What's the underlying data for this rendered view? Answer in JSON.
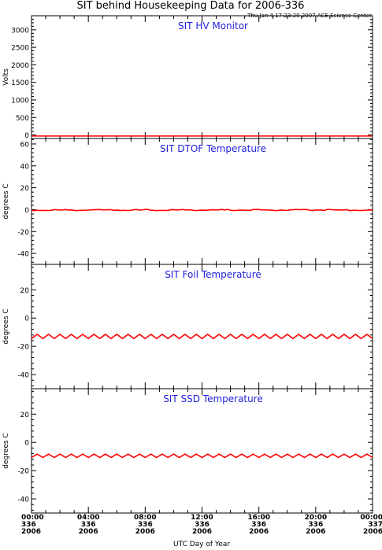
{
  "figure": {
    "title": "SIT behind Housekeeping Data for 2006-336",
    "timestamp": "Thu Jan  4 17:23:20 2007 ACE Science Center",
    "xlabel": "UTC Day of Year",
    "xticks": [
      {
        "time": "00:00",
        "doy": "336",
        "year": "2006"
      },
      {
        "time": "04:00",
        "doy": "336",
        "year": "2006"
      },
      {
        "time": "08:00",
        "doy": "336",
        "year": "2006"
      },
      {
        "time": "12:00",
        "doy": "336",
        "year": "2006"
      },
      {
        "time": "16:00",
        "doy": "336",
        "year": "2006"
      },
      {
        "time": "20:00",
        "doy": "336",
        "year": "2006"
      },
      {
        "time": "00:00",
        "doy": "337",
        "year": "2006"
      }
    ],
    "colors": {
      "series": "#ff0000",
      "panel_title": "#1f1fdd",
      "axes": "#000000"
    }
  },
  "chart_data": [
    {
      "type": "line",
      "title": "SIT HV Monitor",
      "ylabel": "Volts",
      "ylim": [
        -100,
        3400
      ],
      "yticks": [
        0,
        500,
        1000,
        1500,
        2000,
        2500,
        3000
      ],
      "xlim": [
        0,
        24
      ],
      "x_unit": "hours of UTC day 336",
      "series": [
        {
          "description": "constant",
          "points": [
            [
              0,
              -30
            ],
            [
              24,
              -30
            ]
          ]
        }
      ]
    },
    {
      "type": "line",
      "title": "SIT DTOF Temperature",
      "ylabel": "degrees C",
      "ylim": [
        -50,
        65
      ],
      "yticks": [
        -40,
        -20,
        0,
        20,
        40,
        60
      ],
      "xlim": [
        0,
        24
      ],
      "x_unit": "hours of UTC day 336",
      "series": [
        {
          "description": "flat with small noise",
          "points": [
            [
              0,
              -0.5
            ],
            [
              4,
              -0.3
            ],
            [
              8,
              -0.4
            ],
            [
              12,
              -0.3
            ],
            [
              16,
              -0.4
            ],
            [
              20,
              -0.3
            ],
            [
              24,
              -0.4
            ]
          ]
        }
      ]
    },
    {
      "type": "line",
      "title": "SIT Foil Temperature",
      "ylabel": "degrees C",
      "ylim": [
        -50,
        38
      ],
      "yticks": [
        -40,
        -20,
        0,
        20
      ],
      "xlim": [
        0,
        24
      ],
      "x_unit": "hours of UTC day 336",
      "series": [
        {
          "description": "periodic oscillation",
          "mean": -13,
          "amplitude": 1.5,
          "cycles": 30
        }
      ]
    },
    {
      "type": "line",
      "title": "SIT SSD Temperature",
      "ylabel": "degrees C",
      "ylim": [
        -50,
        38
      ],
      "yticks": [
        -40,
        -20,
        0,
        20
      ],
      "xlim": [
        0,
        24
      ],
      "x_unit": "hours of UTC day 336",
      "series": [
        {
          "description": "periodic oscillation",
          "mean": -9.5,
          "amplitude": 1.2,
          "cycles": 30
        }
      ]
    }
  ]
}
